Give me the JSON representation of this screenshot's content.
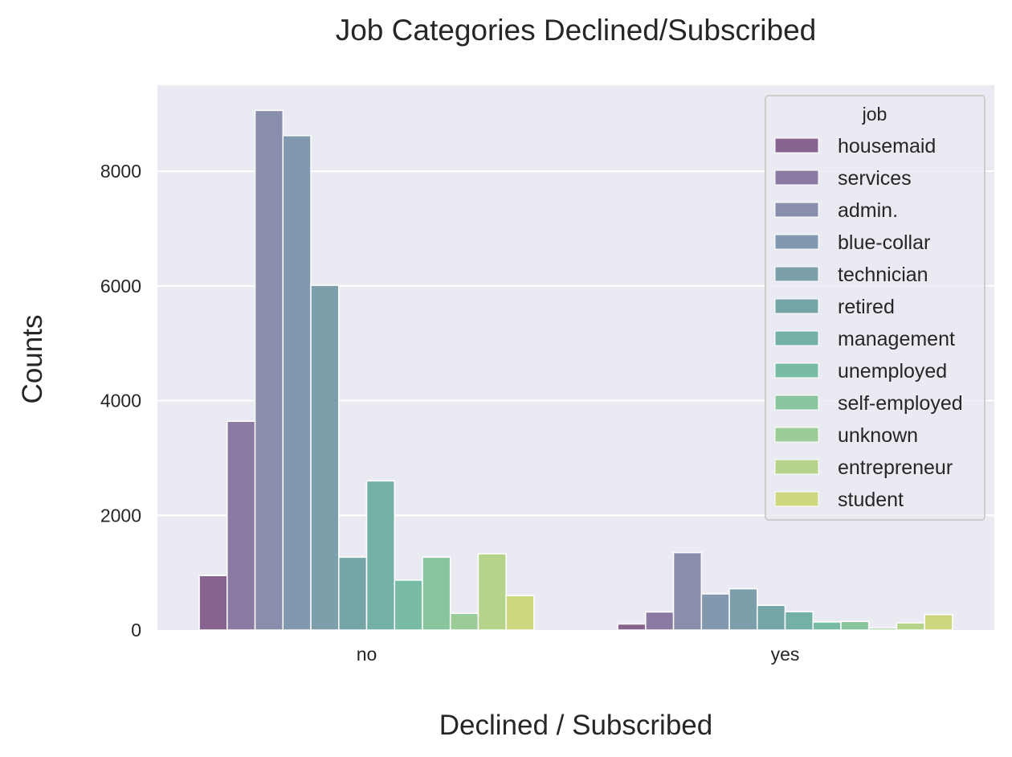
{
  "chart_data": {
    "type": "bar",
    "title": "Job Categories Declined/Subscribed",
    "xlabel": "Declined / Subscribed",
    "ylabel": "Counts",
    "categories": [
      "no",
      "yes"
    ],
    "ylim": [
      0,
      9500
    ],
    "yticks": [
      "0",
      "2000",
      "4000",
      "6000",
      "8000"
    ],
    "grid": true,
    "legend": {
      "title": "job",
      "position": "top-right"
    },
    "series": [
      {
        "name": "housemaid",
        "values": [
          950,
          105
        ],
        "color": "#86648f"
      },
      {
        "name": "services",
        "values": [
          3640,
          315
        ],
        "color": "#8b7aa2"
      },
      {
        "name": "admin.",
        "values": [
          9060,
          1350
        ],
        "color": "#8a8ead"
      },
      {
        "name": "blue-collar",
        "values": [
          8620,
          630
        ],
        "color": "#8298ae"
      },
      {
        "name": "technician",
        "values": [
          6010,
          720
        ],
        "color": "#7d9fac"
      },
      {
        "name": "retired",
        "values": [
          1270,
          430
        ],
        "color": "#76a5a8"
      },
      {
        "name": "management",
        "values": [
          2600,
          320
        ],
        "color": "#73b1a7"
      },
      {
        "name": "unemployed",
        "values": [
          870,
          140
        ],
        "color": "#78bca5"
      },
      {
        "name": "self-employed",
        "values": [
          1270,
          150
        ],
        "color": "#88c59f"
      },
      {
        "name": "unknown",
        "values": [
          290,
          35
        ],
        "color": "#9bcc97"
      },
      {
        "name": "entrepreneur",
        "values": [
          1330,
          125
        ],
        "color": "#b5d38a"
      },
      {
        "name": "student",
        "values": [
          600,
          270
        ],
        "color": "#cdd77f"
      }
    ]
  }
}
